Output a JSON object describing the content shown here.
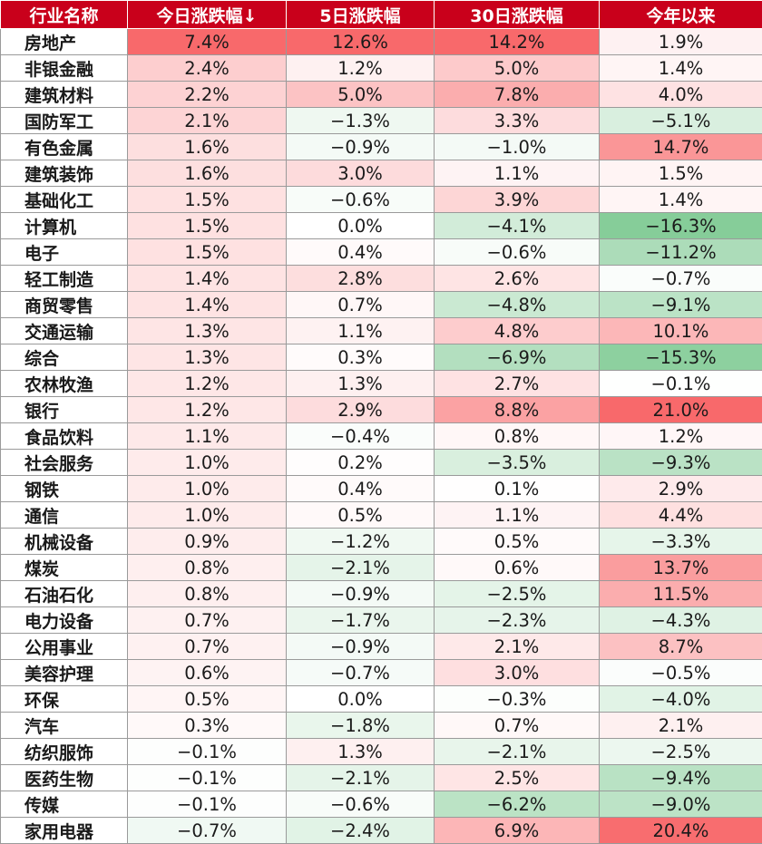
{
  "chart_data": {
    "type": "table",
    "columns": [
      "行业名称",
      "今日涨跌幅↓",
      "5日涨跌幅",
      "30日涨跌幅",
      "今年以来"
    ],
    "unit": "%",
    "colors": {
      "header_bg": "#c9001b",
      "positive_max": "#f8696b",
      "negative_max": "#63be7b",
      "neutral": "#ffffff"
    },
    "rows": [
      {
        "name": "房地产",
        "values": [
          7.4,
          12.6,
          14.2,
          1.9
        ]
      },
      {
        "name": "非银金融",
        "values": [
          2.4,
          1.2,
          5.0,
          1.4
        ]
      },
      {
        "name": "建筑材料",
        "values": [
          2.2,
          5.0,
          7.8,
          4.0
        ]
      },
      {
        "name": "国防军工",
        "values": [
          2.1,
          -1.3,
          3.3,
          -5.1
        ]
      },
      {
        "name": "有色金属",
        "values": [
          1.6,
          -0.9,
          -1.0,
          14.7
        ]
      },
      {
        "name": "建筑装饰",
        "values": [
          1.6,
          3.0,
          1.1,
          1.5
        ]
      },
      {
        "name": "基础化工",
        "values": [
          1.5,
          -0.6,
          3.9,
          1.4
        ]
      },
      {
        "name": "计算机",
        "values": [
          1.5,
          0.0,
          -4.1,
          -16.3
        ]
      },
      {
        "name": "电子",
        "values": [
          1.5,
          0.4,
          -0.6,
          -11.2
        ]
      },
      {
        "name": "轻工制造",
        "values": [
          1.4,
          2.8,
          2.6,
          -0.7
        ]
      },
      {
        "name": "商贸零售",
        "values": [
          1.4,
          0.7,
          -4.8,
          -9.1
        ]
      },
      {
        "name": "交通运输",
        "values": [
          1.3,
          1.1,
          4.8,
          10.1
        ]
      },
      {
        "name": "综合",
        "values": [
          1.3,
          0.3,
          -6.9,
          -15.3
        ]
      },
      {
        "name": "农林牧渔",
        "values": [
          1.2,
          1.3,
          2.7,
          -0.1
        ]
      },
      {
        "name": "银行",
        "values": [
          1.2,
          2.9,
          8.8,
          21.0
        ]
      },
      {
        "name": "食品饮料",
        "values": [
          1.1,
          -0.4,
          0.8,
          1.2
        ]
      },
      {
        "name": "社会服务",
        "values": [
          1.0,
          0.2,
          -3.5,
          -9.3
        ]
      },
      {
        "name": "钢铁",
        "values": [
          1.0,
          0.4,
          0.1,
          2.9
        ]
      },
      {
        "name": "通信",
        "values": [
          1.0,
          0.5,
          1.1,
          4.4
        ]
      },
      {
        "name": "机械设备",
        "values": [
          0.9,
          -1.2,
          0.5,
          -3.3
        ]
      },
      {
        "name": "煤炭",
        "values": [
          0.8,
          -2.1,
          0.6,
          13.7
        ]
      },
      {
        "name": "石油石化",
        "values": [
          0.8,
          -0.9,
          -2.5,
          11.5
        ]
      },
      {
        "name": "电力设备",
        "values": [
          0.7,
          -1.7,
          -2.3,
          -4.3
        ]
      },
      {
        "name": "公用事业",
        "values": [
          0.7,
          -0.9,
          2.1,
          8.7
        ]
      },
      {
        "name": "美容护理",
        "values": [
          0.6,
          -0.7,
          3.0,
          -0.5
        ]
      },
      {
        "name": "环保",
        "values": [
          0.5,
          0.0,
          -0.3,
          -4.0
        ]
      },
      {
        "name": "汽车",
        "values": [
          0.3,
          -1.8,
          0.7,
          2.1
        ]
      },
      {
        "name": "纺织服饰",
        "values": [
          -0.1,
          1.3,
          -2.1,
          -2.5
        ]
      },
      {
        "name": "医药生物",
        "values": [
          -0.1,
          -2.1,
          2.5,
          -9.4
        ]
      },
      {
        "name": "传媒",
        "values": [
          -0.1,
          -0.6,
          -6.2,
          -9.0
        ]
      },
      {
        "name": "家用电器",
        "values": [
          -0.7,
          -2.4,
          6.9,
          20.4
        ]
      }
    ]
  }
}
